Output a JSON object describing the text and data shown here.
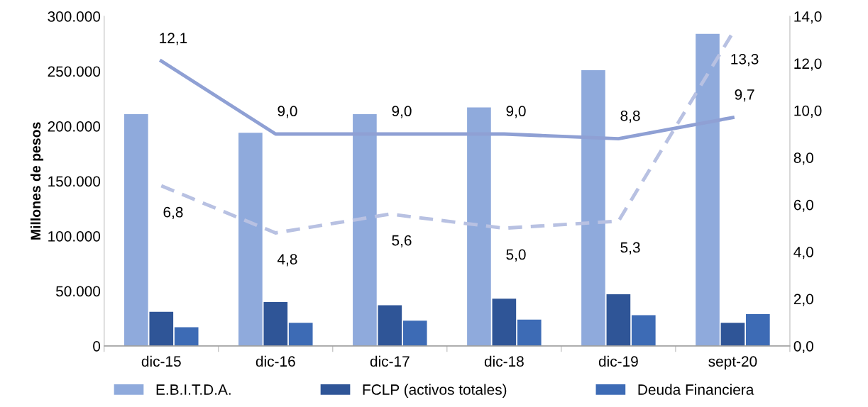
{
  "chart_data": {
    "type": "bar",
    "ylabel": "Millones de pesos",
    "categories": [
      "dic-15",
      "dic-16",
      "dic-17",
      "dic-18",
      "dic-19",
      "sept-20"
    ],
    "series": [
      {
        "name": "E.B.I.T.D.A.",
        "color": "#8faadc",
        "values": [
          211000,
          194000,
          211000,
          217000,
          251000,
          284000
        ]
      },
      {
        "name": "FCLP (activos totales)",
        "color": "#2f5597",
        "values": [
          31000,
          40000,
          37000,
          43000,
          47000,
          21000
        ]
      },
      {
        "name": "Deuda Financiera",
        "color": "#3d6bb5",
        "values": [
          17000,
          21000,
          23000,
          24000,
          28000,
          29000
        ]
      },
      {
        "type": "line",
        "axis": "y2",
        "color": "#8fa0d4",
        "line_style": "solid",
        "values": [
          12.1,
          9.0,
          9.0,
          9.0,
          8.8,
          9.7
        ],
        "value_labels": [
          "12,1",
          "9,0",
          "9,0",
          "9,0",
          "8,8",
          "9,7"
        ]
      },
      {
        "type": "line",
        "axis": "y2",
        "color": "#b8c1e2",
        "line_style": "dashed",
        "values": [
          6.8,
          4.8,
          5.6,
          5.0,
          5.3,
          13.3
        ],
        "value_labels": [
          "6,8",
          "4,8",
          "5,6",
          "5,0",
          "5,3",
          "13,3"
        ]
      }
    ],
    "ylim": [
      0,
      300000
    ],
    "yticks": [
      {
        "value": 0,
        "label": "0"
      },
      {
        "value": 50000,
        "label": "50.000"
      },
      {
        "value": 100000,
        "label": "100.000"
      },
      {
        "value": 150000,
        "label": "150.000"
      },
      {
        "value": 200000,
        "label": "200.000"
      },
      {
        "value": 250000,
        "label": "250.000"
      },
      {
        "value": 300000,
        "label": "300.000"
      }
    ],
    "y2lim": [
      0,
      14
    ],
    "y2ticks": [
      {
        "value": 0,
        "label": "0,0"
      },
      {
        "value": 2,
        "label": "2,0"
      },
      {
        "value": 4,
        "label": "4,0"
      },
      {
        "value": 6,
        "label": "6,0"
      },
      {
        "value": 8,
        "label": "8,0"
      },
      {
        "value": 10,
        "label": "10,0"
      },
      {
        "value": 12,
        "label": "12,0"
      },
      {
        "value": 14,
        "label": "14,0"
      }
    ],
    "grid": false,
    "legend": "bottom"
  }
}
